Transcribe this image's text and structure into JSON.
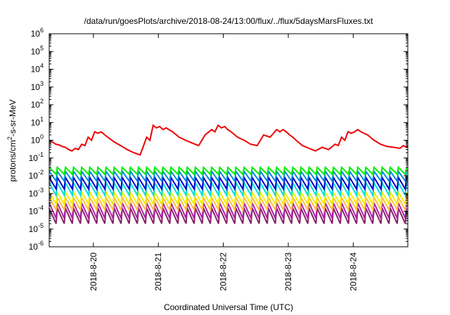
{
  "chart_data": {
    "type": "line",
    "title": "/data/run/goesPlots/archive/2018-08-24/13:00/flux/../flux/5daysMarsFluxes.txt",
    "xlabel": "Coordinated Universal Time (UTC)",
    "ylabel_parts": [
      "protons/cm",
      "2",
      "-s-sr-MeV"
    ],
    "y_scale": "log",
    "ylim_exponents": [
      -6,
      6
    ],
    "y_tick_base": "10",
    "y_tick_exponents": [
      "-6",
      "-5",
      "-4",
      "-3",
      "-2",
      "-1",
      "0",
      "1",
      "2",
      "3",
      "4",
      "5",
      "6"
    ],
    "xlim_days": [
      0,
      5.52
    ],
    "x_ticks": [
      {
        "label": "2018-8-20",
        "x": 0.68
      },
      {
        "label": "2018-8-21",
        "x": 1.68
      },
      {
        "label": "2018-8-22",
        "x": 2.68
      },
      {
        "label": "2018-8-23",
        "x": 3.68
      },
      {
        "label": "2018-8-24",
        "x": 4.68
      }
    ],
    "grid": false,
    "legend": "none",
    "colors": [
      "#ee0000",
      "#00ee00",
      "#0088dd",
      "#0000cc",
      "#00dddd",
      "#eeee00",
      "#ffbb44",
      "#aa22aa",
      "#882266"
    ],
    "series": [
      {
        "color": "#ee0000",
        "x": [
          0.0,
          0.05,
          0.1,
          0.15,
          0.2,
          0.25,
          0.3,
          0.35,
          0.4,
          0.45,
          0.5,
          0.55,
          0.6,
          0.65,
          0.7,
          0.75,
          0.8,
          0.9,
          1.0,
          1.1,
          1.2,
          1.3,
          1.4,
          1.5,
          1.55,
          1.6,
          1.65,
          1.7,
          1.75,
          1.8,
          1.9,
          2.0,
          2.1,
          2.2,
          2.3,
          2.4,
          2.5,
          2.55,
          2.6,
          2.65,
          2.7,
          2.75,
          2.8,
          2.9,
          3.0,
          3.1,
          3.2,
          3.3,
          3.4,
          3.5,
          3.55,
          3.6,
          3.65,
          3.7,
          3.75,
          3.8,
          3.9,
          4.0,
          4.1,
          4.2,
          4.3,
          4.4,
          4.45,
          4.5,
          4.55,
          4.6,
          4.65,
          4.7,
          4.75,
          4.8,
          4.9,
          5.0,
          5.1,
          5.2,
          5.3,
          5.4,
          5.45,
          5.5,
          5.52
        ],
        "y": [
          1.0,
          0.8,
          0.6,
          0.55,
          0.45,
          0.4,
          0.3,
          0.25,
          0.35,
          0.3,
          0.6,
          0.5,
          1.5,
          1.0,
          3.0,
          2.5,
          3.0,
          1.5,
          0.8,
          0.5,
          0.3,
          0.2,
          0.15,
          1.5,
          1.0,
          7.0,
          5.0,
          6.0,
          4.0,
          5.0,
          3.0,
          1.5,
          1.0,
          0.7,
          0.5,
          2.0,
          4.0,
          3.0,
          7.0,
          5.0,
          6.0,
          4.0,
          3.0,
          1.5,
          1.0,
          0.6,
          0.5,
          2.0,
          1.5,
          4.0,
          3.0,
          4.0,
          3.0,
          2.0,
          1.5,
          1.0,
          0.5,
          0.35,
          0.25,
          0.4,
          0.3,
          0.6,
          0.5,
          1.5,
          1.0,
          3.0,
          2.5,
          3.0,
          4.0,
          3.0,
          2.0,
          1.0,
          0.6,
          0.45,
          0.4,
          0.35,
          0.5,
          0.4,
          0.5
        ]
      }
    ],
    "periodic_series": [
      {
        "color": "#00ee00",
        "period": 0.125,
        "high": 0.03,
        "low": 0.012
      },
      {
        "color": "#0088dd",
        "period": 0.125,
        "high": 0.018,
        "low": 0.005
      },
      {
        "color": "#0000cc",
        "period": 0.125,
        "high": 0.008,
        "low": 0.0018
      },
      {
        "color": "#00dddd",
        "period": 0.125,
        "high": 0.004,
        "low": 0.0008
      },
      {
        "color": "#eeee00",
        "period": 0.125,
        "high": 0.0012,
        "low": 0.00025
      },
      {
        "color": "#ffbb44",
        "period": 0.125,
        "high": 0.0006,
        "low": 0.00012
      },
      {
        "color": "#aa22aa",
        "period": 0.125,
        "high": 0.0003,
        "low": 4e-05
      },
      {
        "color": "#882266",
        "period": 0.125,
        "high": 0.00015,
        "low": 2e-05
      }
    ]
  }
}
